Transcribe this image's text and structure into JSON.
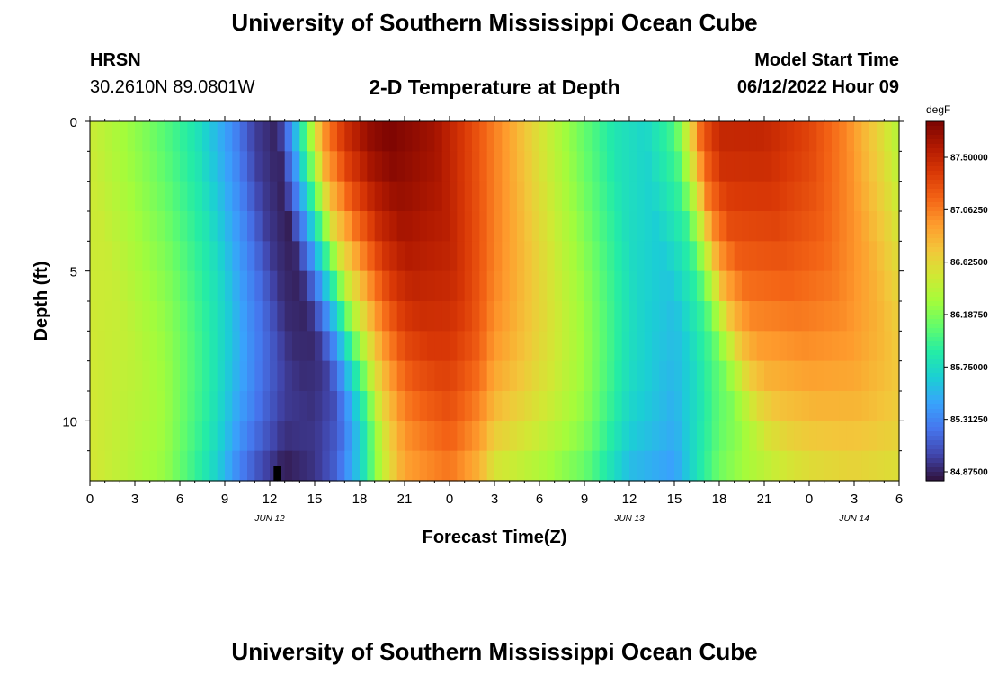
{
  "header": {
    "title": "University of Southern Mississippi Ocean Cube",
    "station": "HRSN",
    "coords": "30.2610N  89.0801W",
    "subtitle": "2-D Temperature at Depth",
    "model_start_label": "Model Start Time",
    "model_start_value": "06/12/2022 Hour 09"
  },
  "footer_title": "University of Southern Mississippi Ocean Cube",
  "chart_data": {
    "type": "heatmap",
    "title": "2-D Temperature at Depth",
    "xlabel": "Forecast Time(Z)",
    "ylabel": "Depth (ft)",
    "x_ticks": [
      "0",
      "3",
      "6",
      "9",
      "12",
      "15",
      "18",
      "21",
      "0",
      "3",
      "6",
      "9",
      "12",
      "15",
      "18",
      "21",
      "0",
      "3",
      "6"
    ],
    "x_range_hours": [
      0,
      54
    ],
    "date_labels": [
      {
        "label": "JUN 12",
        "hour": 12
      },
      {
        "label": "JUN 13",
        "hour": 36
      },
      {
        "label": "JUN 14",
        "hour": 51
      }
    ],
    "y_ticks": [
      "0",
      "5",
      "10"
    ],
    "y_range": [
      0,
      12
    ],
    "y_inverted": true,
    "colorbar": {
      "unit": "degF",
      "min": 84.8,
      "max": 87.8,
      "labels": [
        "87.50000",
        "87.06250",
        "86.62500",
        "86.18750",
        "85.75000",
        "85.31250",
        "84.87500"
      ],
      "label_values": [
        87.5,
        87.0625,
        86.625,
        86.1875,
        85.75,
        85.3125,
        84.875
      ]
    },
    "marker_hour": 12.5,
    "grid": false,
    "colormap": [
      "#30123b",
      "#4145ab",
      "#4675ed",
      "#39a2fc",
      "#1bcfd4",
      "#24eca6",
      "#61fc6c",
      "#a4fc3b",
      "#d1e834",
      "#f3c63a",
      "#fe9b2d",
      "#f36315",
      "#d93806",
      "#b11901",
      "#7a0402"
    ]
  }
}
